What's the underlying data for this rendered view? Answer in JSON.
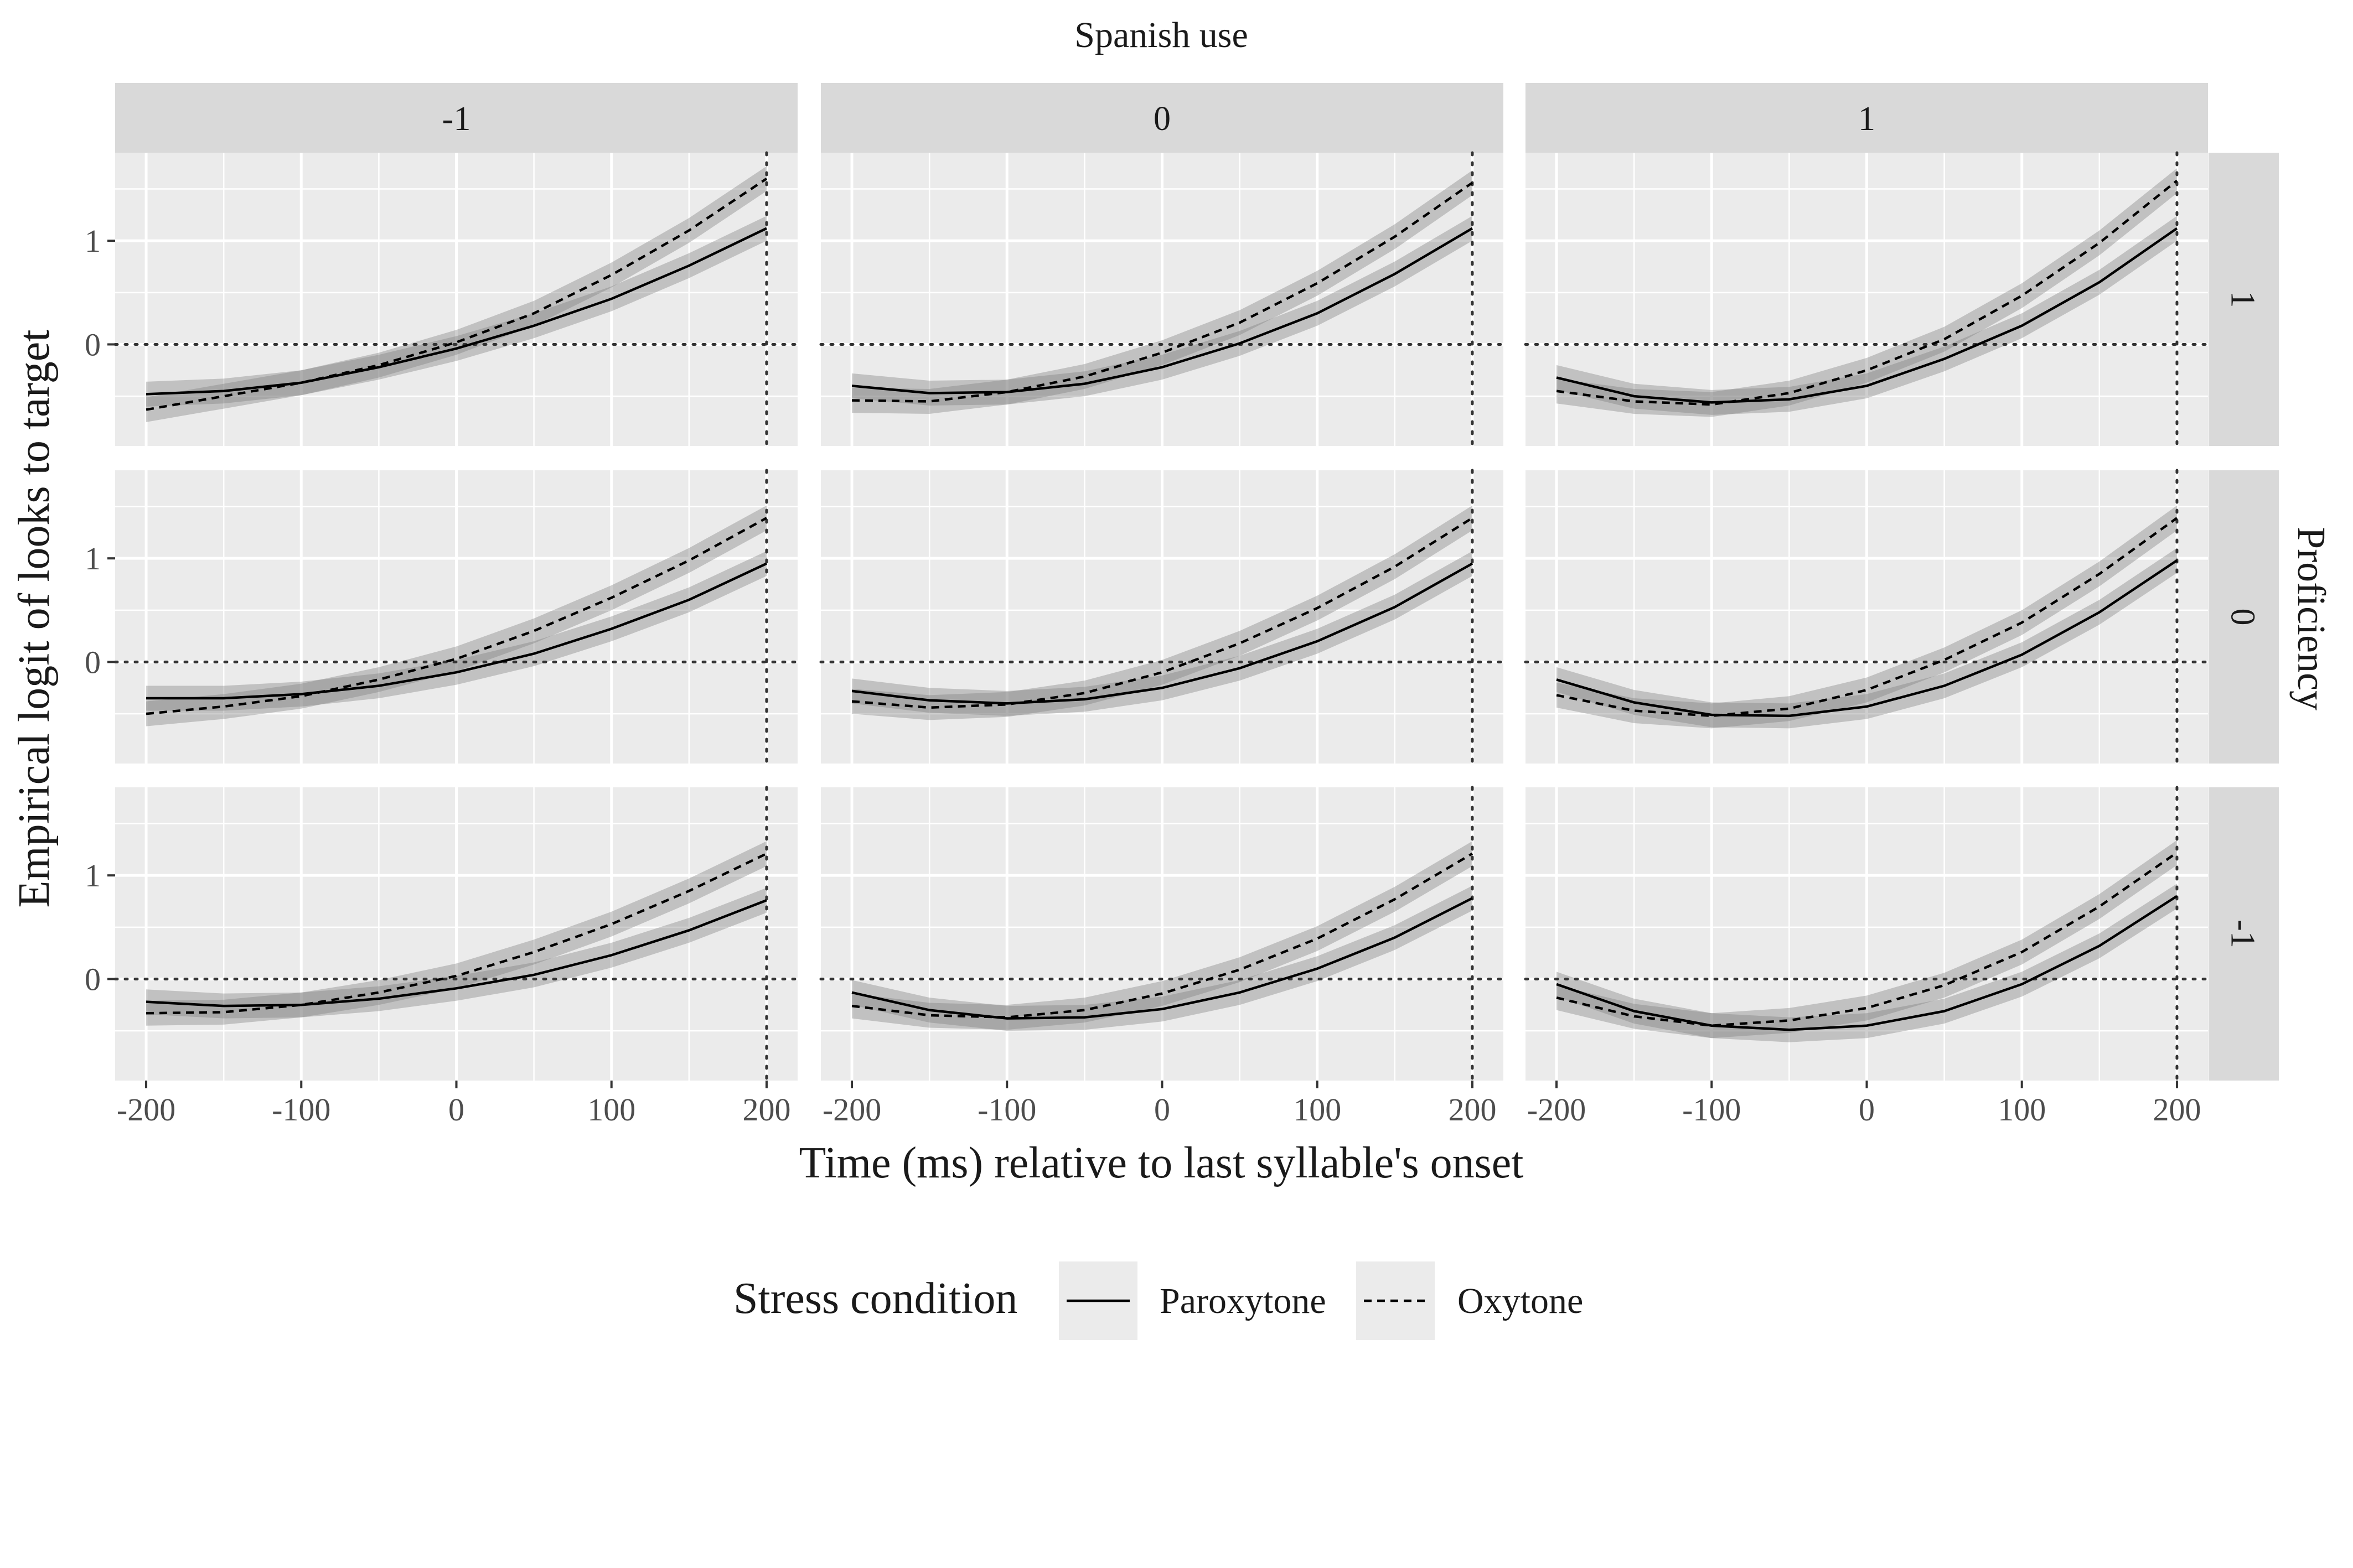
{
  "chart_data": {
    "type": "line",
    "facet_col_title": "Spanish use",
    "facet_row_title": "Proficiency",
    "col_levels": [
      "-1",
      "0",
      "1"
    ],
    "row_levels": [
      "1",
      "0",
      "-1"
    ],
    "xlabel": "Time (ms) relative to last syllable's onset",
    "ylabel": "Empirical logit of looks to target",
    "xlim": [
      -220,
      220
    ],
    "ylim": [
      -0.98,
      1.85
    ],
    "x_ticks": [
      "-200",
      "-100",
      "0",
      "100",
      "200"
    ],
    "x_tick_values": [
      -200,
      -100,
      0,
      100,
      200
    ],
    "y_ticks": [
      "0",
      "1"
    ],
    "y_tick_values": [
      0,
      1
    ],
    "hline": 0,
    "vline": 200,
    "x": [
      -200,
      -150,
      -100,
      -50,
      0,
      50,
      100,
      150,
      200
    ],
    "legend": {
      "title": "Stress condition",
      "position": "bottom"
    },
    "series_names": [
      "Paroxytone",
      "Oxytone"
    ],
    "band_halfwidth": 0.12,
    "panels": [
      {
        "row": "1",
        "col": "-1",
        "paroxytone": [
          -0.48,
          -0.45,
          -0.37,
          -0.22,
          -0.04,
          0.18,
          0.44,
          0.76,
          1.12
        ],
        "oxytone": [
          -0.63,
          -0.5,
          -0.37,
          -0.2,
          0.02,
          0.3,
          0.67,
          1.1,
          1.6
        ]
      },
      {
        "row": "1",
        "col": "0",
        "paroxytone": [
          -0.4,
          -0.47,
          -0.46,
          -0.38,
          -0.22,
          0.01,
          0.3,
          0.68,
          1.12
        ],
        "oxytone": [
          -0.54,
          -0.55,
          -0.46,
          -0.31,
          -0.08,
          0.21,
          0.59,
          1.04,
          1.56
        ]
      },
      {
        "row": "1",
        "col": "1",
        "paroxytone": [
          -0.32,
          -0.5,
          -0.56,
          -0.53,
          -0.4,
          -0.14,
          0.18,
          0.6,
          1.12
        ],
        "oxytone": [
          -0.45,
          -0.55,
          -0.58,
          -0.47,
          -0.25,
          0.05,
          0.47,
          0.98,
          1.58
        ]
      },
      {
        "row": "0",
        "col": "-1",
        "paroxytone": [
          -0.35,
          -0.35,
          -0.31,
          -0.23,
          -0.1,
          0.08,
          0.32,
          0.6,
          0.95
        ],
        "oxytone": [
          -0.5,
          -0.43,
          -0.33,
          -0.17,
          0.03,
          0.3,
          0.62,
          0.98,
          1.39
        ]
      },
      {
        "row": "0",
        "col": "0",
        "paroxytone": [
          -0.28,
          -0.37,
          -0.4,
          -0.36,
          -0.25,
          -0.06,
          0.2,
          0.53,
          0.95
        ],
        "oxytone": [
          -0.38,
          -0.44,
          -0.41,
          -0.3,
          -0.1,
          0.18,
          0.52,
          0.92,
          1.39
        ]
      },
      {
        "row": "0",
        "col": "1",
        "paroxytone": [
          -0.17,
          -0.39,
          -0.51,
          -0.52,
          -0.43,
          -0.23,
          0.07,
          0.48,
          0.98
        ],
        "oxytone": [
          -0.32,
          -0.47,
          -0.52,
          -0.45,
          -0.27,
          0.02,
          0.38,
          0.85,
          1.39
        ]
      },
      {
        "row": "-1",
        "col": "-1",
        "paroxytone": [
          -0.22,
          -0.26,
          -0.25,
          -0.19,
          -0.09,
          0.04,
          0.23,
          0.47,
          0.76
        ],
        "oxytone": [
          -0.33,
          -0.32,
          -0.25,
          -0.13,
          0.03,
          0.26,
          0.53,
          0.85,
          1.21
        ]
      },
      {
        "row": "-1",
        "col": "0",
        "paroxytone": [
          -0.13,
          -0.3,
          -0.38,
          -0.37,
          -0.29,
          -0.13,
          0.1,
          0.4,
          0.78
        ],
        "oxytone": [
          -0.26,
          -0.35,
          -0.37,
          -0.3,
          -0.14,
          0.09,
          0.39,
          0.77,
          1.21
        ]
      },
      {
        "row": "-1",
        "col": "1",
        "paroxytone": [
          -0.05,
          -0.31,
          -0.45,
          -0.49,
          -0.45,
          -0.31,
          -0.05,
          0.32,
          0.8
        ],
        "oxytone": [
          -0.18,
          -0.36,
          -0.45,
          -0.4,
          -0.28,
          -0.06,
          0.26,
          0.7,
          1.22
        ]
      }
    ]
  }
}
